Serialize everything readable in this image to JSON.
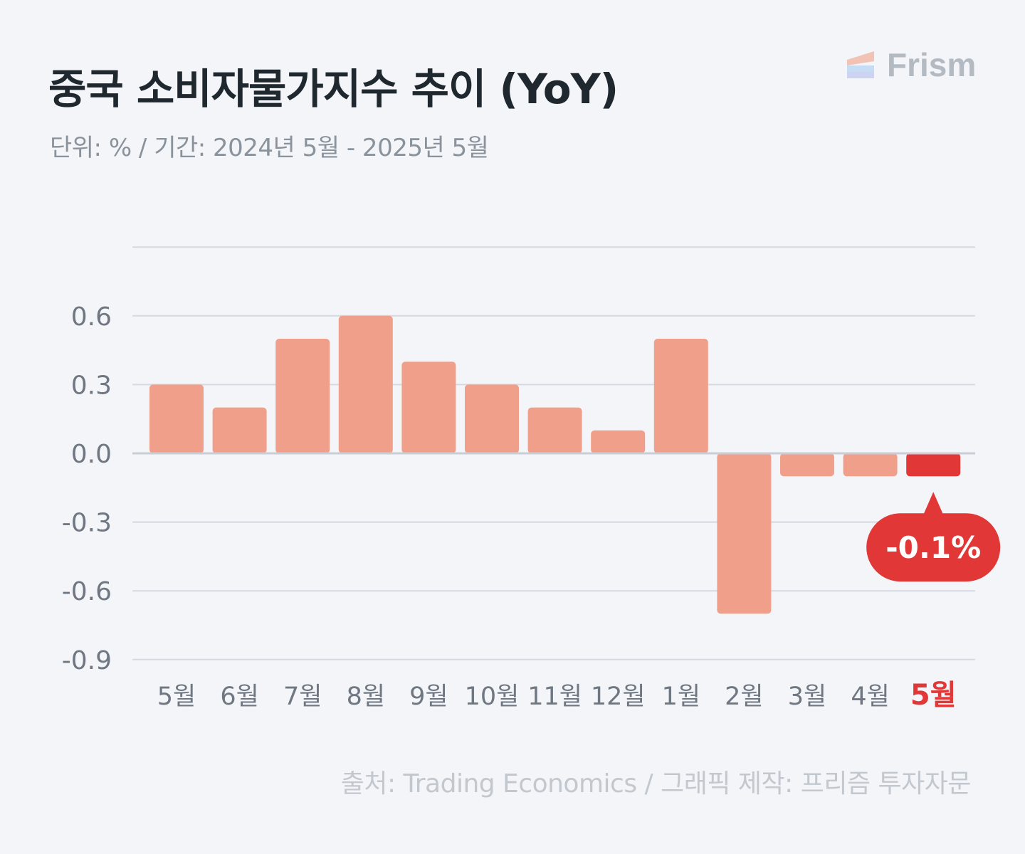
{
  "header": {
    "title": "중국 소비자물가지수 추이 (YoY)",
    "subtitle": "단위: % / 기간: 2024년 5월 - 2025년 5월"
  },
  "brand": {
    "name": "Frism",
    "icon": "layered-stripes-logo-icon"
  },
  "footer": {
    "source": "출처: Trading Economics / 그래픽 제작: 프리즘 투자자문"
  },
  "colors": {
    "bar": "#f0a08a",
    "highlight": "#e23737",
    "grid": "#d5d9e1",
    "zero_line": "#c9ced6",
    "tick_label": "#6f7782",
    "background": "#f3f5f8"
  },
  "chart_data": {
    "type": "bar",
    "categories": [
      "5월",
      "6월",
      "7월",
      "8월",
      "9월",
      "10월",
      "11월",
      "12월",
      "1월",
      "2월",
      "3월",
      "4월",
      "5월"
    ],
    "values": [
      0.3,
      0.2,
      0.5,
      0.6,
      0.4,
      0.3,
      0.2,
      0.1,
      0.5,
      -0.7,
      -0.1,
      -0.1,
      -0.1
    ],
    "highlight_index": 12,
    "highlight_label": "-0.1%",
    "yticks": [
      "0.6",
      "0.3",
      "0.0",
      "-0.3",
      "-0.6",
      "-0.9"
    ],
    "ytick_values": [
      0.6,
      0.3,
      0.0,
      -0.3,
      -0.6,
      -0.9
    ],
    "ylim": [
      -0.9,
      0.9
    ],
    "grid": true,
    "legend": "none"
  }
}
